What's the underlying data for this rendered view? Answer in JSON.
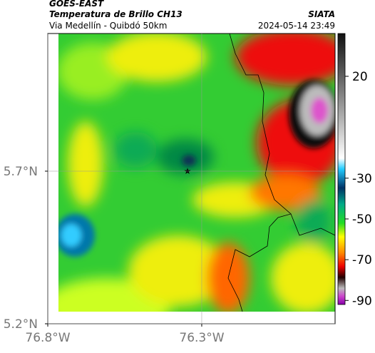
{
  "header": {
    "source": "GOES-EAST",
    "title": "Temperatura de Brillo CH13",
    "subtitle": "Via Medellín - Quibdó 50km",
    "org": "SIATA",
    "timestamp": "2024-05-14 23:49"
  },
  "map": {
    "xlim": [
      -76.8,
      -75.867
    ],
    "ylim": [
      5.2,
      6.151
    ],
    "xticks": [
      {
        "value": -76.8,
        "label": "76.8°W"
      },
      {
        "value": -76.3,
        "label": "76.3°W"
      }
    ],
    "yticks": [
      {
        "value": 5.7,
        "label": "5.7°N"
      },
      {
        "value": 5.2,
        "label": "5.2°N"
      }
    ],
    "grid": true
  },
  "colorbar": {
    "lim": [
      41,
      -92
    ],
    "ticks": [
      20,
      -30,
      -50,
      -70,
      -90
    ]
  }
}
